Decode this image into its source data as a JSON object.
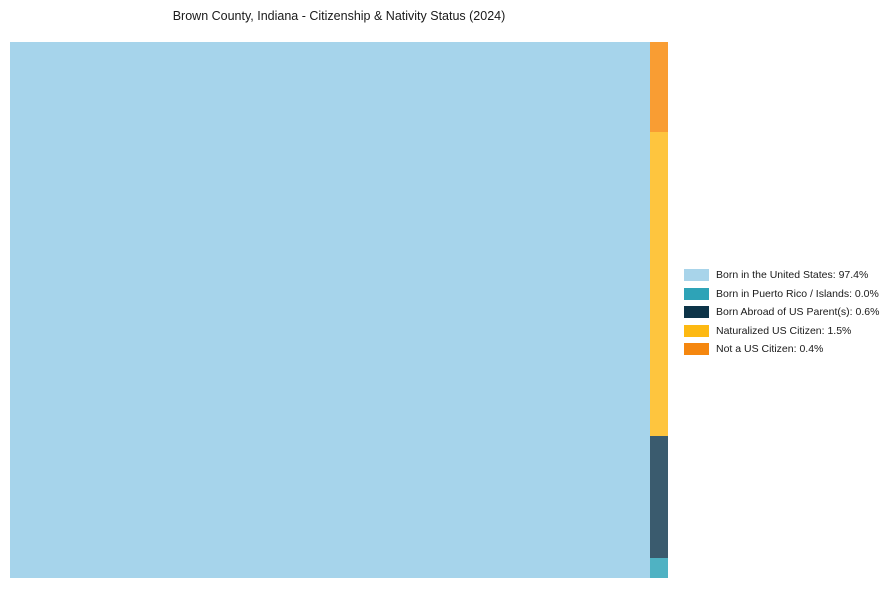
{
  "title": "Brown County, Indiana - Citizenship & Nativity Status (2024)",
  "chart_data": {
    "type": "treemap",
    "title": "Brown County, Indiana - Citizenship & Nativity Status (2024)",
    "categories": [
      "Born in the United States",
      "Born in Puerto Rico / Islands",
      "Born Abroad of US Parent(s)",
      "Naturalized US Citizen",
      "Not a US Citizen"
    ],
    "values": [
      97.4,
      0.0,
      0.6,
      1.5,
      0.4
    ],
    "legend_position": "right",
    "grid": false,
    "legend": [
      {
        "label": "Born in the United States: 97.4%",
        "color": "#a8d4ea"
      },
      {
        "label": "Born in Puerto Rico / Islands: 0.0%",
        "color": "#2ea3b7"
      },
      {
        "label": "Born Abroad of US Parent(s): 0.6%",
        "color": "#0d3448"
      },
      {
        "label": "Naturalized US Citizen: 1.5%",
        "color": "#fdb912"
      },
      {
        "label": "Not a US Citizen: 0.4%",
        "color": "#f5870f"
      }
    ],
    "layout": {
      "main_rect": {
        "name": "Born in the United States",
        "value": 97.4,
        "color": "#a6d4eb",
        "width_frac": 0.9726
      },
      "minor_column": {
        "width_frac": 0.0274,
        "segments": [
          {
            "name": "Not a US Citizen",
            "value": 0.4,
            "color": "#f99d33",
            "height_frac": 0.1679
          },
          {
            "name": "Naturalized US Citizen",
            "value": 1.5,
            "color": "#fec53e",
            "height_frac": 0.5672
          },
          {
            "name": "Born Abroad of US Parent(s)",
            "value": 0.6,
            "color": "#3a5b6e",
            "height_frac": 0.2276
          },
          {
            "name": "Born in Puerto Rico / Islands",
            "value": 0.0,
            "color": "#4fb2c3",
            "height_frac": 0.0373
          }
        ]
      }
    }
  }
}
